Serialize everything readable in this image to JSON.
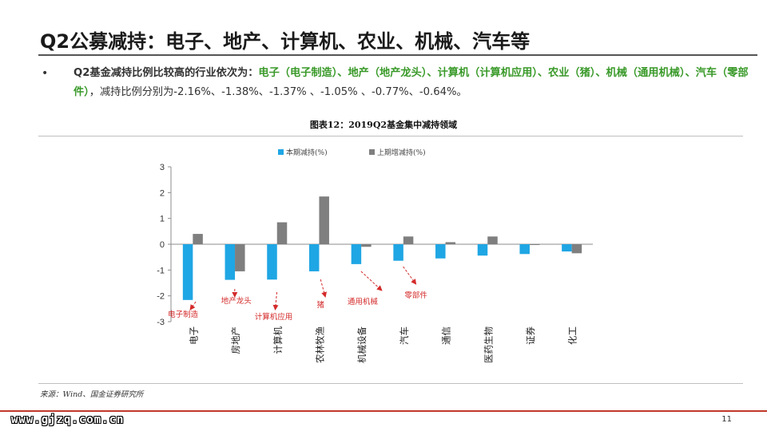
{
  "slide": {
    "title": "Q2公募减持：电子、地产、计算机、农业、机械、汽车等",
    "bullet": "•",
    "summary_parts": [
      {
        "text": "Q2基金减持比例比较高的行业依次为：",
        "style": "b"
      },
      {
        "text": "电子（电子制造）、地产（地产龙头）、计算机（计算机应用）、农业（猪）、机械（通用机械）、汽车（零部件）",
        "style": "g"
      },
      {
        "text": "，减持比例分别为-2.16%、-1.38%、-1.37% 、-1.05% 、-0.77%、-0.64%。",
        "style": "n"
      }
    ],
    "figure_title": "图表12：2019Q2基金集中减持领域",
    "source": "来源：Wind、国金证券研究所",
    "website": "www.gjzq.com.cn",
    "page_number": "11"
  },
  "colors": {
    "current": "#1fa6e4",
    "previous": "#7f7f7f",
    "annotation": "#d42a2a",
    "green_text": "#3a9a2a",
    "accent_rule": "#c0392b"
  },
  "chart_data": {
    "type": "bar",
    "categories": [
      "电子",
      "房地产",
      "计算机",
      "农林牧渔",
      "机械设备",
      "汽车",
      "通信",
      "医药生物",
      "证券",
      "化工"
    ],
    "series": [
      {
        "name": "本期减持(%)",
        "values": [
          -2.16,
          -1.38,
          -1.37,
          -1.05,
          -0.77,
          -0.64,
          -0.55,
          -0.44,
          -0.38,
          -0.28
        ]
      },
      {
        "name": "上期增减持(%)",
        "values": [
          0.4,
          -1.05,
          0.85,
          1.85,
          -0.1,
          0.3,
          0.08,
          0.3,
          -0.03,
          -0.35
        ]
      }
    ],
    "ylim": [
      -3,
      3
    ],
    "yticks": [
      3,
      2,
      1,
      0,
      -1,
      -2,
      -3
    ],
    "legend_position": "top",
    "grid": false,
    "annotations": [
      {
        "text": "电子制造",
        "category": 0,
        "series": 0
      },
      {
        "text": "地产龙头",
        "category": 1,
        "series": 0
      },
      {
        "text": "计算机应用",
        "category": 2,
        "series": 0
      },
      {
        "text": "猪",
        "category": 3,
        "series": 0
      },
      {
        "text": "通用机械",
        "category": 4,
        "series": 0
      },
      {
        "text": "零部件",
        "category": 5,
        "series": 0
      }
    ]
  }
}
